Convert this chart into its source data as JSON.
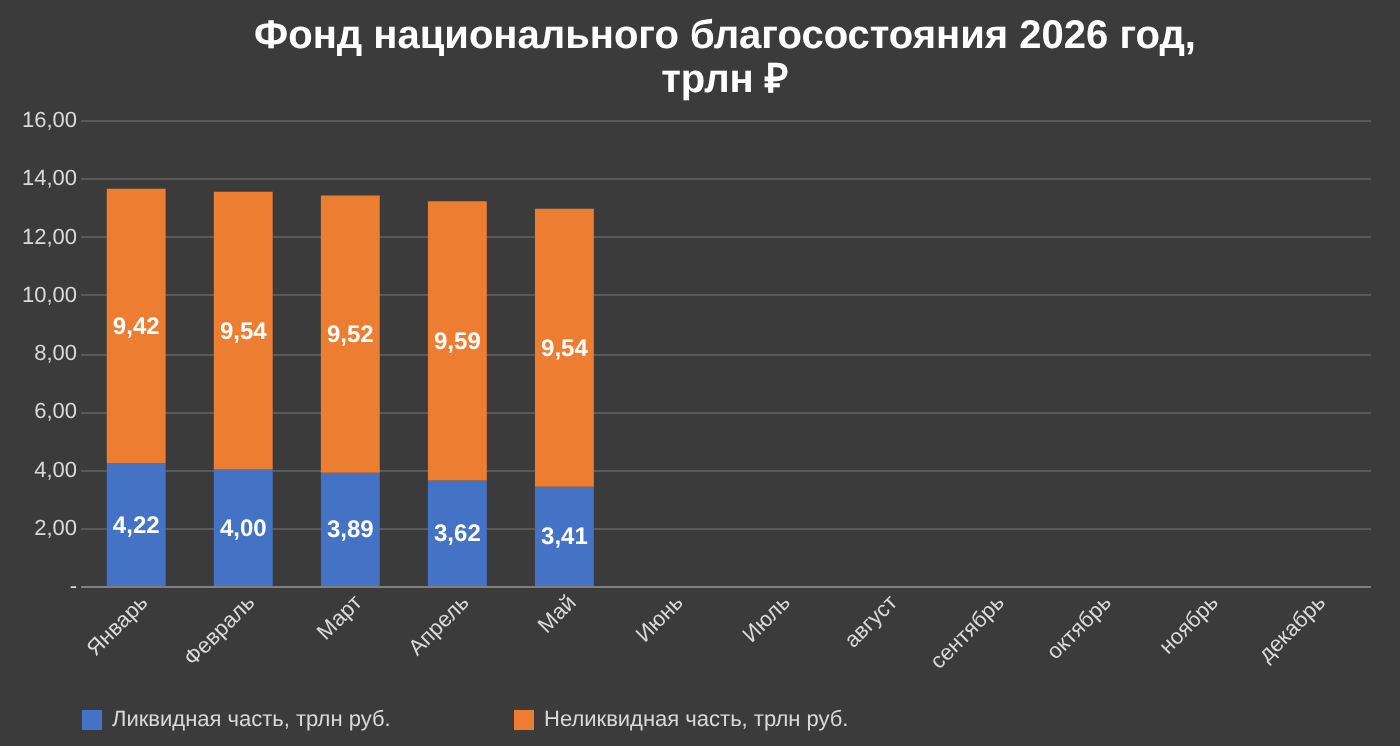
{
  "chart_data": {
    "type": "bar",
    "stacked": true,
    "title": "Фонд национального благосостояния 2026 год,\nтрлн ₽",
    "categories": [
      "Январь",
      "Февраль",
      "Март",
      "Апрель",
      "Май",
      "Июнь",
      "Июль",
      "август",
      "сентябрь",
      "октябрь",
      "ноябрь",
      "декабрь"
    ],
    "series": [
      {
        "name": "Ликвидная часть, трлн руб.",
        "color": "#4472c4",
        "values": [
          4.22,
          4.0,
          3.89,
          3.62,
          3.41,
          null,
          null,
          null,
          null,
          null,
          null,
          null
        ],
        "value_labels": [
          "4,22",
          "4,00",
          "3,89",
          "3,62",
          "3,41",
          null,
          null,
          null,
          null,
          null,
          null,
          null
        ]
      },
      {
        "name": "Неликвидная часть, трлн руб.",
        "color": "#ed7d31",
        "values": [
          9.42,
          9.54,
          9.52,
          9.59,
          9.54,
          null,
          null,
          null,
          null,
          null,
          null,
          null
        ],
        "value_labels": [
          "9,42",
          "9,54",
          "9,52",
          "9,59",
          "9,54",
          null,
          null,
          null,
          null,
          null,
          null,
          null
        ]
      }
    ],
    "ylim": [
      0,
      16
    ],
    "yticks": [
      {
        "value": 0,
        "label": "-"
      },
      {
        "value": 2,
        "label": "2,00"
      },
      {
        "value": 4,
        "label": "4,00"
      },
      {
        "value": 6,
        "label": "6,00"
      },
      {
        "value": 8,
        "label": "8,00"
      },
      {
        "value": 10,
        "label": "10,00"
      },
      {
        "value": 12,
        "label": "12,00"
      },
      {
        "value": 14,
        "label": "14,00"
      },
      {
        "value": 16,
        "label": "16,00"
      }
    ],
    "grid": "y",
    "legend": "bottom"
  }
}
